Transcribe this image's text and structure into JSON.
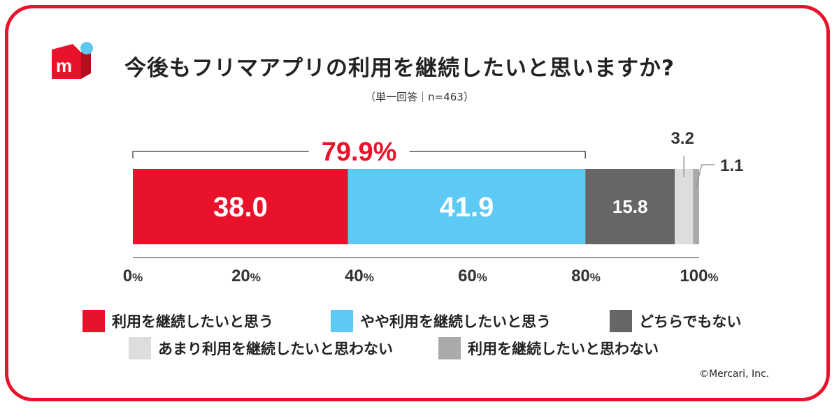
{
  "title": "今後もフリマアプリの利用を継続したいと思いますか?",
  "subtitle": "（単一回答｜n=463）",
  "copyright": "©Mercari, Inc.",
  "logo": {
    "icon": "mercari-logo-icon",
    "brand_color": "#e8132a",
    "dot_color": "#5ec8f3"
  },
  "chart_data": {
    "type": "bar",
    "orientation": "horizontal",
    "stacked": true,
    "xlim": [
      0,
      100
    ],
    "x_ticks": [
      {
        "value": 0,
        "num": "0",
        "unit": "%"
      },
      {
        "value": 20,
        "num": "20",
        "unit": "%"
      },
      {
        "value": 40,
        "num": "40",
        "unit": "%"
      },
      {
        "value": 60,
        "num": "60",
        "unit": "%"
      },
      {
        "value": 80,
        "num": "80",
        "unit": "%"
      },
      {
        "value": 100,
        "num": "100",
        "unit": "%"
      }
    ],
    "series": [
      {
        "name": "利用を継続したいと思う",
        "value": 38.0,
        "label": "38.0",
        "color": "#e8132a"
      },
      {
        "name": "やや利用を継続したいと思う",
        "value": 41.9,
        "label": "41.9",
        "color": "#5ccaf5"
      },
      {
        "name": "どちらでもない",
        "value": 15.8,
        "label": "15.8",
        "color": "#666666"
      },
      {
        "name": "あまり利用を継続したいと思わない",
        "value": 3.2,
        "label": "3.2",
        "color": "#dddddd"
      },
      {
        "name": "利用を継続したいと思わない",
        "value": 1.1,
        "label": "1.1",
        "color": "#aaaaaa"
      }
    ],
    "bracket": {
      "from": 0,
      "to": 79.9,
      "label": "79.9%",
      "color": "#e8132a"
    },
    "grid": false,
    "legend": "bottom"
  }
}
